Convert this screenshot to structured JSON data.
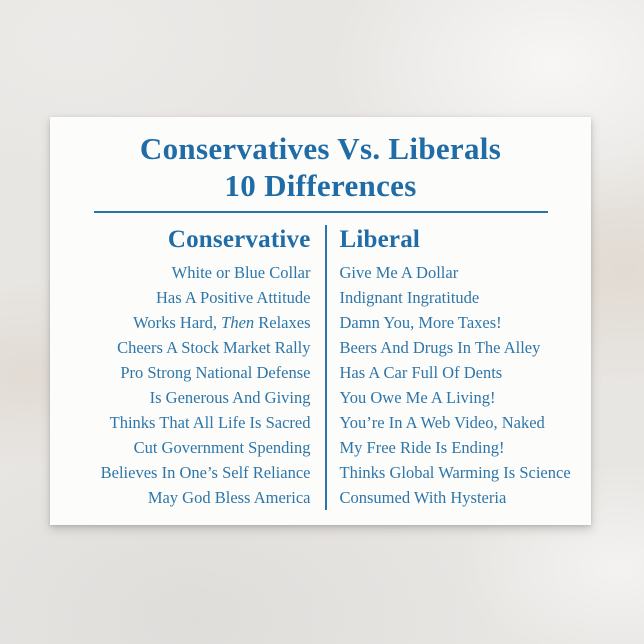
{
  "colors": {
    "accent_blue": "#1f6ca7",
    "body_blue": "#2e76a9",
    "card_white": "#fcfcfa",
    "marble_background": "#e8e6e3"
  },
  "postcard": {
    "title_line1": "Conservatives Vs. Liberals",
    "title_line2": "10 Differences",
    "columns": {
      "conservative": {
        "header": "Conservative",
        "items": [
          "White or Blue Collar",
          "Has A Positive Attitude",
          {
            "prefix": "Works Hard, ",
            "italic": "Then",
            "suffix": " Relaxes"
          },
          "Cheers A Stock Market Rally",
          "Pro Strong National Defense",
          "Is Generous And Giving",
          "Thinks That All Life Is Sacred",
          "Cut Government Spending",
          "Believes In One’s Self Reliance",
          "May God Bless America"
        ]
      },
      "liberal": {
        "header": "Liberal",
        "items": [
          "Give Me A Dollar",
          "Indignant Ingratitude",
          "Damn You, More Taxes!",
          "Beers And Drugs In The Alley",
          "Has A Car Full Of Dents",
          "You Owe Me A Living!",
          "You’re In A Web Video, Naked",
          "My Free Ride Is Ending!",
          "Thinks Global Warming Is Science",
          "Consumed With Hysteria"
        ]
      }
    }
  }
}
